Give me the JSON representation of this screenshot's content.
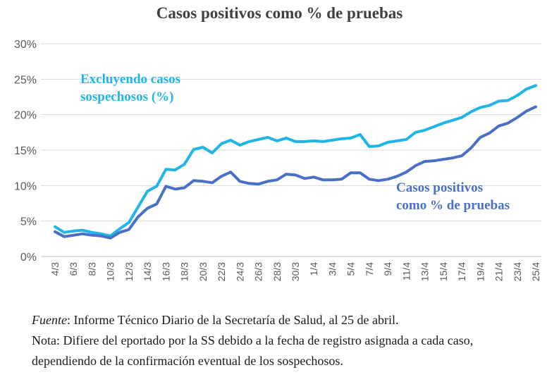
{
  "chart_data": {
    "type": "line",
    "title": "Casos positivos como % de pruebas",
    "x": [
      "4/3",
      "5/3",
      "6/3",
      "7/3",
      "8/3",
      "9/3",
      "10/3",
      "11/3",
      "12/3",
      "13/3",
      "14/3",
      "15/3",
      "16/3",
      "17/3",
      "18/3",
      "19/3",
      "20/3",
      "21/3",
      "22/3",
      "23/3",
      "24/3",
      "25/3",
      "26/3",
      "27/3",
      "28/3",
      "29/3",
      "30/3",
      "31/3",
      "1/4",
      "2/4",
      "3/4",
      "4/4",
      "5/4",
      "6/4",
      "7/4",
      "8/4",
      "9/4",
      "10/4",
      "11/4",
      "12/4",
      "13/4",
      "14/4",
      "15/4",
      "16/4",
      "17/4",
      "18/4",
      "19/4",
      "20/4",
      "21/4",
      "22/4",
      "23/4",
      "24/4",
      "25/4"
    ],
    "x_tick_labels": [
      "4/3",
      "6/3",
      "8/3",
      "10/3",
      "12/3",
      "14/3",
      "16/3",
      "18/3",
      "20/3",
      "22/3",
      "24/3",
      "26/3",
      "28/3",
      "30/3",
      "1/4",
      "3/4",
      "5/4",
      "7/4",
      "9/4",
      "11/4",
      "13/4",
      "15/4",
      "17/4",
      "19/4",
      "21/4",
      "23/4",
      "25/4"
    ],
    "y_tick_labels": [
      "0%",
      "5%",
      "10%",
      "15%",
      "20%",
      "25%",
      "30%"
    ],
    "ylim": [
      0,
      30
    ],
    "grid": true,
    "series": [
      {
        "name": "Excluyendo casos sospechosos (%)",
        "name_lines": [
          "Excluyendo casos",
          "sospechosos  (%)"
        ],
        "color": "#1fb5e6",
        "values": [
          4.2,
          3.4,
          3.6,
          3.7,
          3.4,
          3.2,
          2.9,
          3.9,
          4.8,
          7.0,
          9.2,
          9.9,
          12.3,
          12.2,
          13.0,
          15.1,
          15.4,
          14.6,
          15.9,
          16.4,
          15.7,
          16.2,
          16.5,
          16.8,
          16.3,
          16.7,
          16.2,
          16.2,
          16.3,
          16.2,
          16.4,
          16.6,
          16.7,
          17.2,
          15.5,
          15.6,
          16.1,
          16.3,
          16.5,
          17.5,
          17.8,
          18.3,
          18.8,
          19.2,
          19.6,
          20.4,
          21.0,
          21.3,
          21.9,
          22.0,
          22.7,
          23.6,
          24.1
        ]
      },
      {
        "name": "Casos positivos como % de pruebas",
        "name_lines": [
          "Casos positivos",
          "como % de pruebas"
        ],
        "color": "#4a6fc6",
        "values": [
          3.5,
          2.8,
          3.0,
          3.2,
          3.0,
          2.9,
          2.6,
          3.4,
          3.8,
          5.6,
          6.8,
          7.4,
          9.9,
          9.5,
          9.7,
          10.7,
          10.6,
          10.4,
          11.3,
          11.9,
          10.6,
          10.3,
          10.2,
          10.6,
          10.8,
          11.6,
          11.5,
          11.0,
          11.2,
          10.8,
          10.8,
          10.9,
          11.8,
          11.8,
          10.9,
          10.7,
          10.9,
          11.3,
          11.9,
          12.8,
          13.4,
          13.5,
          13.7,
          13.9,
          14.2,
          15.3,
          16.8,
          17.4,
          18.4,
          18.8,
          19.6,
          20.5,
          21.1
        ]
      }
    ]
  },
  "notes": {
    "fuente_label": "Fuente",
    "fuente_text": ": Informe Técnico Diario de la Secretaría de Salud, al 25 de abril.",
    "nota_line1": "Nota: Difiere del eportado por la SS debido a la fecha de registro asignada a cada caso,",
    "nota_line2": "dependiendo de la confirmación eventual de los sospechosos."
  }
}
